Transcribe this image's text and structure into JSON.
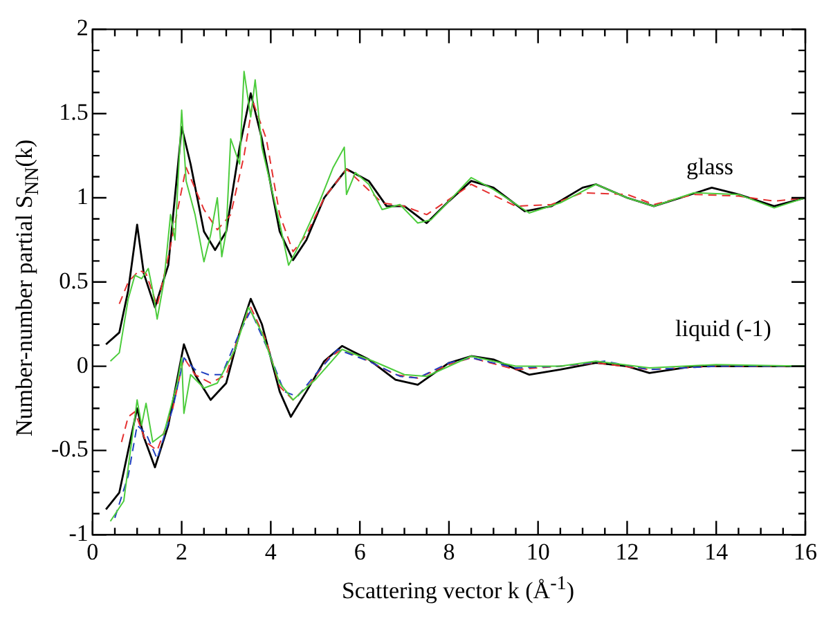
{
  "chart_data": {
    "type": "line",
    "xlabel": "Scattering vector k (Å$^{-1}$)",
    "ylabel": "Number-number partial S$_{NN}$(k)",
    "xlim": [
      0,
      16
    ],
    "ylim": [
      -1,
      2
    ],
    "xticks": [
      0,
      2,
      4,
      6,
      8,
      10,
      12,
      14,
      16
    ],
    "yticks": [
      -1,
      -0.5,
      0,
      0.5,
      1,
      1.5,
      2
    ],
    "annotations": [
      "glass",
      "liquid (-1)"
    ],
    "series": [
      {
        "color": "#4ccc3c",
        "line_style": "solid",
        "x": [
          0.4,
          0.6,
          0.8,
          0.95,
          1.1,
          1.25,
          1.35,
          1.45,
          1.6,
          1.75,
          1.85,
          2.0,
          2.1,
          2.3,
          2.5,
          2.65,
          2.8,
          2.9,
          3.0,
          3.1,
          3.3,
          3.4,
          3.55,
          3.65,
          3.8,
          4.2,
          4.4,
          4.7,
          5.1,
          5.4,
          5.65,
          5.7,
          5.9,
          6.2,
          6.5,
          6.9,
          7.3,
          7.6,
          8.0,
          8.5,
          9.0,
          9.8,
          10.5,
          11.3,
          12.0,
          12.6,
          13.5,
          14.5,
          15.3,
          16
        ],
        "values": [
          0.03,
          0.08,
          0.4,
          0.54,
          0.52,
          0.58,
          0.45,
          0.28,
          0.5,
          0.9,
          0.75,
          1.52,
          1.1,
          0.9,
          0.62,
          0.78,
          1.0,
          0.65,
          0.8,
          1.35,
          1.2,
          1.75,
          1.48,
          1.7,
          1.3,
          0.85,
          0.6,
          0.75,
          0.98,
          1.18,
          1.3,
          1.02,
          1.15,
          1.08,
          0.93,
          0.96,
          0.85,
          0.87,
          0.98,
          1.12,
          1.05,
          0.91,
          0.97,
          1.08,
          1.0,
          0.95,
          1.03,
          1.02,
          0.94,
          1.0
        ]
      },
      {
        "color": "#e53030",
        "line_style": "dashed",
        "x": [
          0.6,
          0.8,
          1.05,
          1.2,
          1.45,
          1.7,
          2.1,
          2.5,
          2.8,
          3.1,
          3.4,
          3.6,
          3.9,
          4.2,
          4.5,
          4.8,
          5.2,
          5.7,
          6.5,
          7.0,
          7.5,
          8.5,
          9.5,
          10.3,
          11.0,
          12,
          12.6,
          13.5,
          14.5,
          15.3,
          16
        ],
        "values": [
          0.37,
          0.5,
          0.57,
          0.55,
          0.36,
          0.65,
          1.18,
          0.93,
          0.81,
          0.9,
          1.25,
          1.57,
          1.35,
          0.9,
          0.68,
          0.78,
          1.0,
          1.17,
          0.97,
          0.95,
          0.9,
          1.08,
          0.95,
          0.96,
          1.03,
          1.02,
          0.96,
          1.02,
          1.01,
          0.98,
          1.0
        ]
      },
      {
        "color": "#000000",
        "line_style": "solid",
        "x": [
          0.3,
          0.6,
          0.8,
          1.0,
          1.15,
          1.4,
          1.7,
          2.0,
          2.2,
          2.5,
          2.75,
          3.0,
          3.3,
          3.55,
          3.8,
          4.2,
          4.5,
          4.8,
          5.2,
          5.7,
          6.2,
          6.6,
          7.0,
          7.5,
          8.0,
          8.5,
          9.0,
          9.7,
          10.3,
          11.0,
          11.3,
          12.0,
          12.6,
          13.2,
          13.9,
          14.5,
          15.3,
          16
        ],
        "values": [
          0.13,
          0.2,
          0.45,
          0.84,
          0.55,
          0.35,
          0.6,
          1.42,
          1.2,
          0.8,
          0.69,
          0.8,
          1.3,
          1.62,
          1.35,
          0.8,
          0.63,
          0.75,
          1.0,
          1.17,
          1.1,
          0.95,
          0.95,
          0.85,
          0.98,
          1.1,
          1.06,
          0.92,
          0.95,
          1.06,
          1.08,
          1.0,
          0.95,
          1.0,
          1.06,
          1.02,
          0.95,
          1.0
        ]
      },
      {
        "color": "#4ccc3c",
        "line_style": "solid",
        "x": [
          0.4,
          0.7,
          0.9,
          1.0,
          1.1,
          1.2,
          1.35,
          1.6,
          1.9,
          2.0,
          2.05,
          2.2,
          2.5,
          2.8,
          3.2,
          3.5,
          3.8,
          4.2,
          4.5,
          5.0,
          5.6,
          6.3,
          7.0,
          7.5,
          8.5,
          9.5,
          10.5,
          11.3,
          12.5,
          14,
          16
        ],
        "values": [
          -0.92,
          -0.8,
          -0.4,
          -0.2,
          -0.35,
          -0.22,
          -0.45,
          -0.4,
          -0.1,
          0.05,
          -0.28,
          -0.05,
          -0.13,
          -0.1,
          0.1,
          0.35,
          0.2,
          -0.1,
          -0.2,
          -0.08,
          0.1,
          0.03,
          -0.05,
          -0.06,
          0.06,
          0.0,
          0.0,
          0.03,
          -0.01,
          0.01,
          0.0
        ]
      },
      {
        "color": "#2040c0",
        "line_style": "dashed",
        "x": [
          0.5,
          0.8,
          1.0,
          1.2,
          1.45,
          1.8,
          2.05,
          2.3,
          2.6,
          2.9,
          3.3,
          3.55,
          3.9,
          4.3,
          4.6,
          5.0,
          5.5,
          6.2,
          6.9,
          7.3,
          8.0,
          8.5,
          9.5,
          10.5,
          11.5,
          12.5,
          14,
          16
        ],
        "values": [
          -0.9,
          -0.65,
          -0.35,
          -0.4,
          -0.55,
          -0.25,
          0.05,
          -0.02,
          -0.05,
          -0.05,
          0.2,
          0.33,
          0.12,
          -0.15,
          -0.18,
          -0.05,
          0.1,
          0.03,
          -0.06,
          -0.07,
          0.02,
          0.05,
          -0.01,
          0.0,
          0.03,
          -0.02,
          0.0,
          0.0
        ]
      },
      {
        "color": "#e53030",
        "line_style": "dashed",
        "x": [
          0.65,
          0.8,
          0.95,
          1.2,
          1.45,
          1.8,
          2.05,
          2.3,
          2.65,
          3.0,
          3.3,
          3.55,
          3.9,
          4.2,
          4.5,
          4.9,
          5.3,
          5.6,
          6.2,
          6.8,
          7.3,
          8.0,
          8.5,
          9.5,
          10.5,
          11.3,
          12.5,
          14,
          16
        ],
        "values": [
          -0.45,
          -0.3,
          -0.27,
          -0.45,
          -0.5,
          -0.25,
          0.05,
          -0.05,
          -0.1,
          -0.05,
          0.2,
          0.35,
          0.15,
          -0.12,
          -0.2,
          -0.1,
          0.05,
          0.1,
          0.03,
          -0.05,
          -0.07,
          0.01,
          0.05,
          -0.02,
          0.0,
          0.02,
          -0.02,
          0.0,
          0.0
        ]
      },
      {
        "color": "#000000",
        "line_style": "solid",
        "x": [
          0.3,
          0.6,
          0.8,
          1.0,
          1.15,
          1.4,
          1.7,
          2.05,
          2.3,
          2.65,
          3.0,
          3.3,
          3.55,
          3.8,
          4.2,
          4.45,
          4.8,
          5.2,
          5.6,
          6.2,
          6.8,
          7.3,
          8.0,
          8.5,
          9.0,
          9.8,
          10.5,
          11.3,
          12.0,
          12.5,
          13.5,
          14.3,
          16
        ],
        "values": [
          -0.85,
          -0.75,
          -0.5,
          -0.25,
          -0.42,
          -0.6,
          -0.35,
          0.13,
          -0.05,
          -0.2,
          -0.1,
          0.2,
          0.4,
          0.25,
          -0.15,
          -0.3,
          -0.15,
          0.03,
          0.12,
          0.04,
          -0.08,
          -0.11,
          0.02,
          0.06,
          0.04,
          -0.05,
          -0.02,
          0.02,
          0.0,
          -0.04,
          0.0,
          0.0,
          0.0
        ]
      }
    ]
  }
}
